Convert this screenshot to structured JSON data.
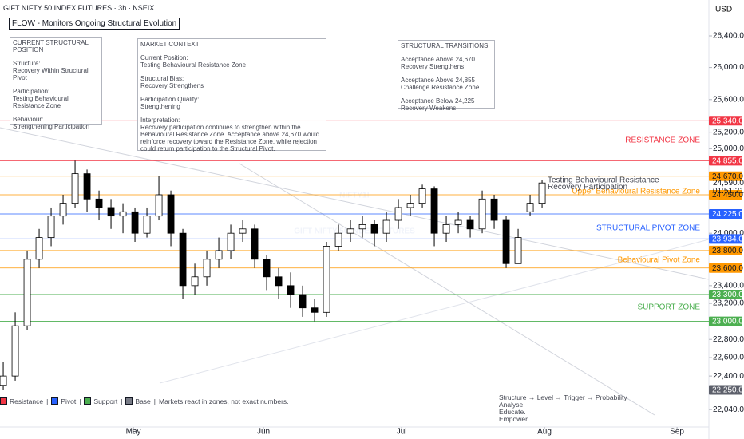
{
  "chart_data": {
    "type": "candlestick",
    "title": "GIFT NIFTY 50 INDEX FUTURES · 3h · NSEIX",
    "currency": "USD",
    "watermark": [
      "NIFTY1!",
      "GIFT NIFTY 50 INDEX FUTURES"
    ],
    "log_scale": true,
    "up_color": "#ffffff",
    "down_color": "#000000",
    "open": [
      22300,
      22400,
      22950,
      23700,
      23950,
      24200,
      24350,
      24700,
      24400,
      24300,
      24200,
      24250,
      24000,
      24200,
      24450,
      24000,
      23400,
      23500,
      23700,
      23800,
      24000,
      24050,
      23700,
      23500,
      23400,
      23300,
      23150,
      23100,
      23850,
      24000,
      24050,
      24100,
      24000,
      24150,
      24300,
      24350,
      24520,
      24000,
      24100,
      24150,
      24050,
      24400,
      24150,
      23650,
      24250,
      24350
    ],
    "high": [
      22550,
      23100,
      23800,
      24050,
      24300,
      24450,
      24855,
      24750,
      24500,
      24400,
      24350,
      24300,
      24300,
      24670,
      24500,
      24050,
      23650,
      23800,
      23950,
      24100,
      24150,
      24100,
      23750,
      23600,
      23550,
      23400,
      23250,
      23900,
      24100,
      24150,
      24200,
      24150,
      24250,
      24400,
      24450,
      24570,
      24550,
      24200,
      24250,
      24200,
      24500,
      24450,
      24200,
      24050,
      24450,
      24620
    ],
    "low": [
      22250,
      22350,
      22900,
      23600,
      23850,
      24100,
      24300,
      24250,
      24150,
      24050,
      24000,
      23900,
      23950,
      24150,
      23850,
      23250,
      23300,
      23400,
      23600,
      23700,
      23900,
      23600,
      23350,
      23250,
      23150,
      23050,
      23000,
      23050,
      23800,
      23900,
      23950,
      23850,
      23900,
      24050,
      24200,
      24300,
      23850,
      23900,
      24000,
      23950,
      24000,
      24050,
      23600,
      23650,
      24200,
      24300
    ],
    "close": [
      22400,
      22950,
      23700,
      23950,
      24200,
      24350,
      24700,
      24400,
      24300,
      24200,
      24250,
      24000,
      24200,
      24450,
      24000,
      23400,
      23500,
      23700,
      23800,
      24000,
      24050,
      23700,
      23500,
      23400,
      23300,
      23150,
      23100,
      23850,
      24000,
      24050,
      24100,
      24000,
      24150,
      24300,
      24350,
      24520,
      24000,
      24100,
      24150,
      24050,
      24400,
      24150,
      23650,
      23950,
      24350,
      24590
    ],
    "xlim": [
      -0.27,
      58.93
    ],
    "xticks": [
      {
        "value": 10.87,
        "label": "May"
      },
      {
        "value": 21.73,
        "label": "Jun"
      },
      {
        "value": 33.27,
        "label": "Jul"
      },
      {
        "value": 45.2,
        "label": "Aug"
      },
      {
        "value": 56.27,
        "label": "Sep"
      }
    ],
    "ylim": [
      21855,
      26862
    ],
    "yticks": [
      {
        "value": 26400,
        "label": "26,400.0"
      },
      {
        "value": 26000,
        "label": "26,000.0"
      },
      {
        "value": 25600,
        "label": "25,600.0"
      },
      {
        "value": 25200,
        "label": "25,200.0"
      },
      {
        "value": 25000,
        "label": "25,000.0"
      },
      {
        "value": 24000,
        "label": "24,000.0"
      },
      {
        "value": 23400,
        "label": "23,400.0"
      },
      {
        "value": 23200,
        "label": "23,200.0"
      },
      {
        "value": 22800,
        "label": "22,800.0"
      },
      {
        "value": 22600,
        "label": "22,600.0"
      },
      {
        "value": 22400,
        "label": "22,400.0"
      },
      {
        "value": 22040,
        "label": "22,040.0"
      }
    ],
    "levels": [
      {
        "value": 25340,
        "label": "25,340.0",
        "color": "#f23645",
        "text_color": "#ffffff"
      },
      {
        "value": 24855,
        "label": "24,855.0",
        "color": "#f23645",
        "text_color": "#ffffff"
      },
      {
        "value": 24670,
        "label": "24,670.0",
        "color": "#ff9800",
        "text_color": "#131722"
      },
      {
        "value": 24450,
        "label": "24,450.0",
        "color": "#ff9800",
        "text_color": "#131722"
      },
      {
        "value": 24225,
        "label": "24,225.0",
        "color": "#2962ff",
        "text_color": "#ffffff"
      },
      {
        "value": 23934,
        "label": "23,934.0",
        "color": "#2962ff",
        "text_color": "#ffffff"
      },
      {
        "value": 23800,
        "label": "23,800.0",
        "color": "#ff9800",
        "text_color": "#131722"
      },
      {
        "value": 23600,
        "label": "23,600.0",
        "color": "#ff9800",
        "text_color": "#131722"
      },
      {
        "value": 23300,
        "label": "23,300.0",
        "color": "#4caf50",
        "text_color": "#ffffff"
      },
      {
        "value": 23000,
        "label": "23,000.0",
        "color": "#4caf50",
        "text_color": "#ffffff"
      },
      {
        "value": 22250,
        "label": "22,250.0",
        "color": "#5d606b",
        "text_color": "#ffffff"
      }
    ],
    "last_price": {
      "value": 24590,
      "label": "24,590.0",
      "countdown": "01:51:21"
    },
    "zone_labels": [
      {
        "text": "RESISTANCE ZONE",
        "color": "#f23645"
      },
      {
        "text": "Upper Behavioural Resistance Zone",
        "color": "#ff9800"
      },
      {
        "text": "STRUCTURAL PIVOT ZONE",
        "color": "#2962ff"
      },
      {
        "text": "Behavioural Pivot Zone",
        "color": "#ff9800"
      },
      {
        "text": "SUPPORT ZONE",
        "color": "#4caf50"
      }
    ],
    "annotation": [
      "Testing Behavioural Resistance",
      "Recovery Participation"
    ]
  },
  "indicator_title": "FLOW - Monitors Ongoing Structural Evolution",
  "panels": {
    "position": {
      "heading": "CURRENT STRUCTURAL POSITION",
      "items": [
        [
          "Structure:",
          "Recovery Within Structural Pivot"
        ],
        [
          "Participation:",
          "Testing Behavioural Resistance Zone"
        ],
        [
          "Behaviour:",
          "Strengthening Participation"
        ]
      ]
    },
    "context": {
      "heading": "MARKET CONTEXT",
      "items": [
        [
          "Current Position:",
          "Testing Behavioural Resistance Zone"
        ],
        [
          "Structural Bias:",
          "Recovery Strengthens"
        ],
        [
          "Participation Quality:",
          "Strengthening"
        ],
        [
          "Interpretation:",
          "Recovery participation continues to strengthen within the Behavioural Resistance Zone. Acceptance above 24,670 would reinforce recovery toward the Resistance Zone, while rejection could return participation to the Structural Pivot."
        ]
      ]
    },
    "transitions": {
      "heading": "STRUCTURAL TRANSITIONS",
      "items": [
        [
          "Acceptance Above 24,670",
          "Recovery Strengthens"
        ],
        [
          "Acceptance Above 24,855",
          "Challenge Resistance Zone"
        ],
        [
          "Acceptance Below 24,225",
          "Recovery Weakens"
        ]
      ]
    }
  },
  "legend": {
    "separator": "|",
    "items": [
      {
        "name": "Resistance",
        "color": "#f23645"
      },
      {
        "name": "Pivot",
        "color": "#2962ff"
      },
      {
        "name": "Support",
        "color": "#4caf50"
      },
      {
        "name": "Base",
        "color": "#787b86"
      }
    ],
    "note": "Markets react in zones, not exact numbers."
  },
  "footer": [
    "Structure → Level → Trigger → Probability",
    "Analyse.",
    "Educate.",
    "Empower."
  ]
}
